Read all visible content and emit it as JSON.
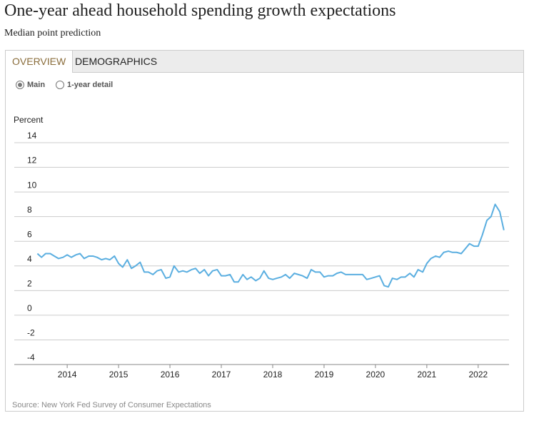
{
  "page": {
    "title": "One-year ahead household spending growth expectations",
    "subtitle": "Median point prediction",
    "tabs": [
      "OVERVIEW",
      "DEMOGRAPHICS"
    ],
    "options": [
      "Main",
      "1-year detail"
    ],
    "source": "Source: New York Fed Survey of Consumer Expectations"
  },
  "chart_data": {
    "type": "line",
    "y_label": "Percent",
    "x": [
      2013.42,
      2013.5,
      2013.58,
      2013.67,
      2013.75,
      2013.83,
      2013.92,
      2014,
      2014.08,
      2014.17,
      2014.25,
      2014.33,
      2014.42,
      2014.5,
      2014.58,
      2014.67,
      2014.75,
      2014.83,
      2014.92,
      2015,
      2015.08,
      2015.17,
      2015.25,
      2015.33,
      2015.42,
      2015.5,
      2015.58,
      2015.67,
      2015.75,
      2015.83,
      2015.92,
      2016,
      2016.08,
      2016.17,
      2016.25,
      2016.33,
      2016.42,
      2016.5,
      2016.58,
      2016.67,
      2016.75,
      2016.83,
      2016.92,
      2017,
      2017.08,
      2017.17,
      2017.25,
      2017.33,
      2017.42,
      2017.5,
      2017.58,
      2017.67,
      2017.75,
      2017.83,
      2017.92,
      2018,
      2018.08,
      2018.17,
      2018.25,
      2018.33,
      2018.42,
      2018.5,
      2018.58,
      2018.67,
      2018.75,
      2018.83,
      2018.92,
      2019,
      2019.08,
      2019.17,
      2019.25,
      2019.33,
      2019.42,
      2019.5,
      2019.58,
      2019.67,
      2019.75,
      2019.83,
      2019.92,
      2020,
      2020.08,
      2020.17,
      2020.25,
      2020.33,
      2020.42,
      2020.5,
      2020.58,
      2020.67,
      2020.75,
      2020.83,
      2020.92,
      2021,
      2021.08,
      2021.17,
      2021.25,
      2021.33,
      2021.42,
      2021.5,
      2021.58,
      2021.67,
      2021.75,
      2021.83,
      2021.92,
      2022,
      2022.08,
      2022.17,
      2022.25,
      2022.33,
      2022.42,
      2022.5
    ],
    "series": [
      {
        "color": "#5aaee0",
        "values": [
          5.0,
          4.7,
          5.0,
          5.0,
          4.8,
          4.6,
          4.7,
          4.9,
          4.7,
          4.9,
          5.0,
          4.6,
          4.8,
          4.8,
          4.7,
          4.5,
          4.6,
          4.5,
          4.8,
          4.2,
          3.9,
          4.5,
          3.8,
          4.0,
          4.3,
          3.5,
          3.5,
          3.3,
          3.6,
          3.7,
          3.0,
          3.1,
          4.0,
          3.5,
          3.6,
          3.5,
          3.7,
          3.8,
          3.4,
          3.7,
          3.2,
          3.6,
          3.7,
          3.2,
          3.2,
          3.3,
          2.7,
          2.7,
          3.3,
          2.9,
          3.1,
          2.8,
          3.0,
          3.6,
          3.0,
          2.9,
          3.0,
          3.1,
          3.3,
          3.0,
          3.4,
          3.3,
          3.2,
          3.0,
          3.7,
          3.5,
          3.5,
          3.1,
          3.2,
          3.2,
          3.4,
          3.5,
          3.3,
          3.3,
          3.3,
          3.3,
          3.3,
          2.9,
          3.0,
          3.1,
          3.2,
          2.4,
          2.3,
          3.0,
          2.9,
          3.1,
          3.1,
          3.4,
          3.1,
          3.7,
          3.5,
          4.2,
          4.6,
          4.8,
          4.7,
          5.1,
          5.2,
          5.1,
          5.1,
          5.0,
          5.4,
          5.8,
          5.6,
          5.6,
          6.5,
          7.7,
          8.0,
          9.0,
          8.4,
          6.9
        ]
      }
    ],
    "xlim": [
      2012.97,
      2022.6
    ],
    "xticks": [
      2014,
      2015,
      2016,
      2017,
      2018,
      2019,
      2020,
      2021,
      2022
    ],
    "ylim": [
      -4,
      14
    ],
    "yticks": [
      -4,
      -2,
      0,
      2,
      4,
      6,
      8,
      10,
      12,
      14
    ],
    "grid": true
  }
}
